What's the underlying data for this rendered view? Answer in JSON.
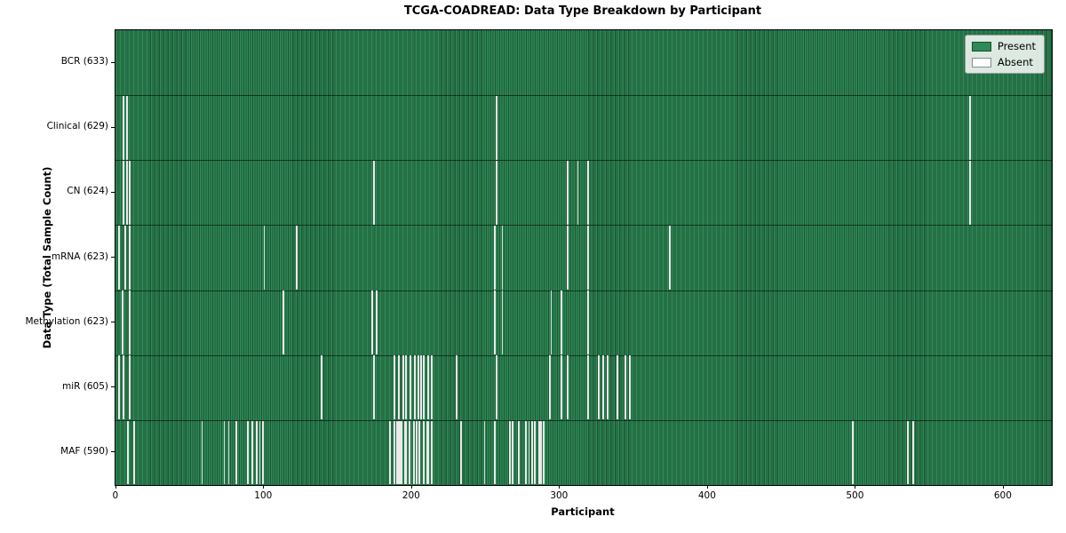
{
  "title": "TCGA-COADREAD: Data Type Breakdown by Participant",
  "xlabel": "Participant",
  "ylabel": "Data Type (Total Sample Count)",
  "legend": {
    "items": [
      {
        "label": "Present",
        "color": "#2e8b57"
      },
      {
        "label": "Absent",
        "color": "#ffffff"
      }
    ]
  },
  "colors": {
    "bar_fill": "#2e8b57",
    "bar_edge": "#1d5434",
    "absent": "#fdfdfd",
    "background": "#ffffff"
  },
  "chart_data": {
    "type": "heatmap",
    "title": "TCGA-COADREAD: Data Type Breakdown by Participant",
    "xlabel": "Participant",
    "ylabel": "Data Type (Total Sample Count)",
    "legend_position": "upper right",
    "n_participants": 633,
    "xlim": [
      0,
      633
    ],
    "x_ticks": [
      0,
      100,
      200,
      300,
      400,
      500,
      600
    ],
    "rows": [
      {
        "label": "BCR (633)",
        "data_type": "BCR",
        "present_count": 633,
        "absent_participants": []
      },
      {
        "label": "Clinical (629)",
        "data_type": "Clinical",
        "present_count": 629,
        "absent_participants": [
          5,
          7,
          257,
          577
        ]
      },
      {
        "label": "CN (624)",
        "data_type": "CN",
        "present_count": 624,
        "absent_participants": [
          5,
          7,
          9,
          174,
          257,
          305,
          312,
          319,
          577
        ]
      },
      {
        "label": "mRNA (623)",
        "data_type": "mRNA",
        "present_count": 623,
        "absent_participants": [
          2,
          6,
          9,
          100,
          122,
          256,
          261,
          305,
          319,
          374
        ]
      },
      {
        "label": "Methylation (623)",
        "data_type": "Methylation",
        "present_count": 623,
        "absent_participants": [
          4,
          9,
          113,
          173,
          176,
          256,
          261,
          294,
          301,
          319
        ]
      },
      {
        "label": "miR (605)",
        "data_type": "miR",
        "present_count": 605,
        "absent_participants": [
          2,
          5,
          9,
          139,
          174,
          188,
          191,
          194,
          196,
          199,
          202,
          204,
          206,
          208,
          211,
          213,
          230,
          257,
          293,
          301,
          305,
          319,
          326,
          329,
          332,
          339,
          344,
          347
        ]
      },
      {
        "label": "MAF (590)",
        "data_type": "MAF",
        "present_count": 590,
        "absent_participants": [
          8,
          12,
          58,
          73,
          76,
          81,
          89,
          92,
          95,
          97,
          99,
          185,
          188,
          190,
          191,
          192,
          193,
          195,
          196,
          198,
          201,
          203,
          205,
          208,
          210,
          211,
          213,
          233,
          249,
          256,
          266,
          268,
          272,
          277,
          279,
          281,
          283,
          286,
          287,
          289,
          498,
          535,
          539
        ]
      }
    ]
  }
}
